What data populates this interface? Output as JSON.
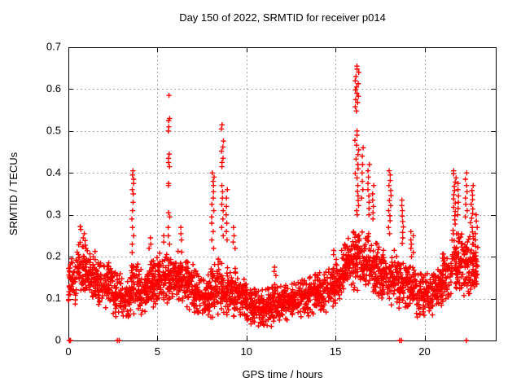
{
  "figure": {
    "background": "#ffffff"
  },
  "chart_data": {
    "type": "scatter",
    "title": "Day 150 of 2022, SRMTID for receiver p014",
    "xlabel": "GPS time / hours",
    "ylabel": "SRMTID / TECUs",
    "xlim": [
      0,
      24
    ],
    "ylim": [
      0,
      0.7
    ],
    "xticks": [
      0,
      5,
      10,
      15,
      20
    ],
    "yticks": [
      0,
      0.1,
      0.2,
      0.3,
      0.4,
      0.5,
      0.6,
      0.7
    ],
    "grid": true,
    "grid_style": "dotted",
    "legend": "none",
    "marker": "plus",
    "marker_color": "#ff0000",
    "axis_color": "#000000",
    "grid_color": "#a8a8a8",
    "seed": 2022150,
    "noise_bands": [
      [
        0.0,
        0.5,
        0.08,
        0.22,
        55
      ],
      [
        0.5,
        1.0,
        0.1,
        0.24,
        60
      ],
      [
        1.0,
        1.5,
        0.09,
        0.22,
        60
      ],
      [
        1.5,
        2.0,
        0.08,
        0.2,
        60
      ],
      [
        2.0,
        2.5,
        0.07,
        0.19,
        55
      ],
      [
        2.5,
        3.0,
        0.05,
        0.17,
        55
      ],
      [
        3.0,
        3.5,
        0.05,
        0.16,
        55
      ],
      [
        3.5,
        4.0,
        0.06,
        0.19,
        55
      ],
      [
        4.0,
        4.5,
        0.06,
        0.18,
        55
      ],
      [
        4.5,
        5.0,
        0.07,
        0.2,
        60
      ],
      [
        5.0,
        5.5,
        0.08,
        0.21,
        60
      ],
      [
        5.5,
        6.0,
        0.08,
        0.22,
        60
      ],
      [
        6.0,
        6.5,
        0.08,
        0.22,
        60
      ],
      [
        6.5,
        7.0,
        0.07,
        0.2,
        60
      ],
      [
        7.0,
        7.5,
        0.05,
        0.18,
        55
      ],
      [
        7.5,
        8.0,
        0.04,
        0.17,
        55
      ],
      [
        8.0,
        8.5,
        0.05,
        0.2,
        55
      ],
      [
        8.5,
        9.0,
        0.05,
        0.2,
        55
      ],
      [
        9.0,
        9.5,
        0.05,
        0.18,
        55
      ],
      [
        9.5,
        10.0,
        0.04,
        0.16,
        55
      ],
      [
        10.0,
        10.5,
        0.03,
        0.13,
        55
      ],
      [
        10.5,
        11.0,
        0.03,
        0.13,
        55
      ],
      [
        11.0,
        11.5,
        0.03,
        0.14,
        55
      ],
      [
        11.5,
        12.0,
        0.04,
        0.15,
        55
      ],
      [
        12.0,
        12.5,
        0.04,
        0.14,
        55
      ],
      [
        12.5,
        13.0,
        0.05,
        0.15,
        55
      ],
      [
        13.0,
        13.5,
        0.05,
        0.16,
        55
      ],
      [
        13.5,
        14.0,
        0.05,
        0.17,
        55
      ],
      [
        14.0,
        14.5,
        0.06,
        0.17,
        55
      ],
      [
        14.5,
        15.0,
        0.07,
        0.19,
        55
      ],
      [
        15.0,
        15.5,
        0.09,
        0.21,
        55
      ],
      [
        15.5,
        16.0,
        0.1,
        0.25,
        60
      ],
      [
        16.0,
        16.5,
        0.11,
        0.3,
        60
      ],
      [
        16.5,
        17.0,
        0.1,
        0.28,
        60
      ],
      [
        17.0,
        17.5,
        0.1,
        0.25,
        60
      ],
      [
        17.5,
        18.0,
        0.08,
        0.22,
        55
      ],
      [
        18.0,
        18.5,
        0.08,
        0.22,
        55
      ],
      [
        18.5,
        19.0,
        0.07,
        0.2,
        55
      ],
      [
        19.0,
        19.5,
        0.07,
        0.19,
        55
      ],
      [
        19.5,
        20.0,
        0.05,
        0.17,
        55
      ],
      [
        20.0,
        20.5,
        0.06,
        0.16,
        55
      ],
      [
        20.5,
        21.0,
        0.07,
        0.18,
        55
      ],
      [
        21.0,
        21.5,
        0.08,
        0.22,
        55
      ],
      [
        21.5,
        22.0,
        0.1,
        0.28,
        60
      ],
      [
        22.0,
        22.5,
        0.1,
        0.28,
        60
      ],
      [
        22.5,
        23.0,
        0.1,
        0.25,
        60
      ]
    ],
    "spike_columns": [
      [
        0.8,
        0.3,
        [
          0.245,
          0.255,
          0.265,
          0.272
        ]
      ],
      [
        3.62,
        0.12,
        [
          0.405,
          0.395,
          0.385,
          0.375,
          0.36,
          0.35,
          0.33,
          0.31,
          0.29,
          0.27,
          0.25,
          0.23,
          0.21
        ]
      ],
      [
        4.55,
        0.2,
        [
          0.22,
          0.23,
          0.245
        ]
      ],
      [
        5.35,
        0.15,
        [
          0.235,
          0.25
        ]
      ],
      [
        5.65,
        0.1,
        [
          0.585,
          0.53,
          0.525,
          0.51,
          0.5,
          0.445,
          0.435,
          0.425,
          0.415,
          0.375,
          0.37,
          0.305,
          0.295,
          0.27,
          0.25,
          0.23
        ]
      ],
      [
        6.35,
        0.2,
        [
          0.24,
          0.255,
          0.27
        ]
      ],
      [
        8.12,
        0.15,
        [
          0.4,
          0.39,
          0.38,
          0.37,
          0.355,
          0.34,
          0.325,
          0.31,
          0.295,
          0.28,
          0.26,
          0.24,
          0.22
        ]
      ],
      [
        8.65,
        0.12,
        [
          0.515,
          0.505,
          0.476,
          0.462,
          0.452,
          0.435,
          0.425,
          0.415,
          0.37,
          0.355,
          0.34,
          0.325,
          0.31,
          0.29,
          0.27,
          0.25
        ]
      ],
      [
        8.88,
        0.1,
        [
          0.36,
          0.34,
          0.32,
          0.3,
          0.28,
          0.26,
          0.24
        ]
      ],
      [
        9.3,
        0.15,
        [
          0.22,
          0.235,
          0.25,
          0.27
        ]
      ],
      [
        11.6,
        0.15,
        [
          0.155,
          0.165,
          0.175
        ]
      ],
      [
        14.9,
        0.12,
        [
          0.205,
          0.215
        ]
      ],
      [
        15.4,
        0.15,
        [
          0.195,
          0.205,
          0.215
        ]
      ],
      [
        16.2,
        0.22,
        [
          0.655,
          0.648,
          0.64,
          0.63,
          0.62,
          0.613,
          0.605,
          0.598,
          0.59,
          0.583,
          0.575,
          0.568,
          0.558,
          0.548,
          0.5,
          0.49,
          0.478,
          0.466,
          0.455,
          0.444,
          0.433,
          0.42,
          0.41,
          0.399,
          0.388,
          0.37,
          0.356,
          0.345,
          0.334,
          0.322,
          0.31,
          0.3
        ]
      ],
      [
        16.5,
        0.12,
        [
          0.46,
          0.44,
          0.42,
          0.4,
          0.38,
          0.36,
          0.34
        ]
      ],
      [
        16.85,
        0.12,
        [
          0.42,
          0.405,
          0.39,
          0.375,
          0.36,
          0.345,
          0.33,
          0.315,
          0.3
        ]
      ],
      [
        17.1,
        0.12,
        [
          0.37,
          0.35,
          0.335,
          0.32,
          0.305,
          0.29
        ]
      ],
      [
        18.05,
        0.15,
        [
          0.405,
          0.395,
          0.382,
          0.37,
          0.358,
          0.346,
          0.334,
          0.322,
          0.31,
          0.298,
          0.286,
          0.27,
          0.255
        ]
      ],
      [
        18.75,
        0.12,
        [
          0.335,
          0.322,
          0.31,
          0.297,
          0.284,
          0.271,
          0.258,
          0.245,
          0.232
        ]
      ],
      [
        19.3,
        0.15,
        [
          0.26,
          0.25,
          0.24,
          0.23,
          0.22,
          0.21,
          0.2
        ]
      ],
      [
        21.7,
        0.15,
        [
          0.405,
          0.398,
          0.388,
          0.378,
          0.368,
          0.358,
          0.348,
          0.338,
          0.328,
          0.318,
          0.308,
          0.298,
          0.288,
          0.278
        ]
      ],
      [
        21.88,
        0.1,
        [
          0.375,
          0.36,
          0.345,
          0.33,
          0.315,
          0.3
        ]
      ],
      [
        22.35,
        0.12,
        [
          0.4,
          0.385,
          0.37,
          0.355,
          0.34,
          0.325,
          0.31,
          0.295
        ]
      ],
      [
        22.65,
        0.18,
        [
          0.37,
          0.358,
          0.347,
          0.336,
          0.325,
          0.314,
          0.303,
          0.292,
          0.281,
          0.27,
          0.259,
          0.248
        ]
      ],
      [
        22.9,
        0.12,
        [
          0.3,
          0.285,
          0.27,
          0.255,
          0.24,
          0.225,
          0.21,
          0.195,
          0.18
        ]
      ]
    ],
    "zero_points": [
      0.05,
      0.08,
      0.1,
      0.12,
      2.75,
      2.85,
      18.6,
      18.7,
      22.35
    ]
  }
}
